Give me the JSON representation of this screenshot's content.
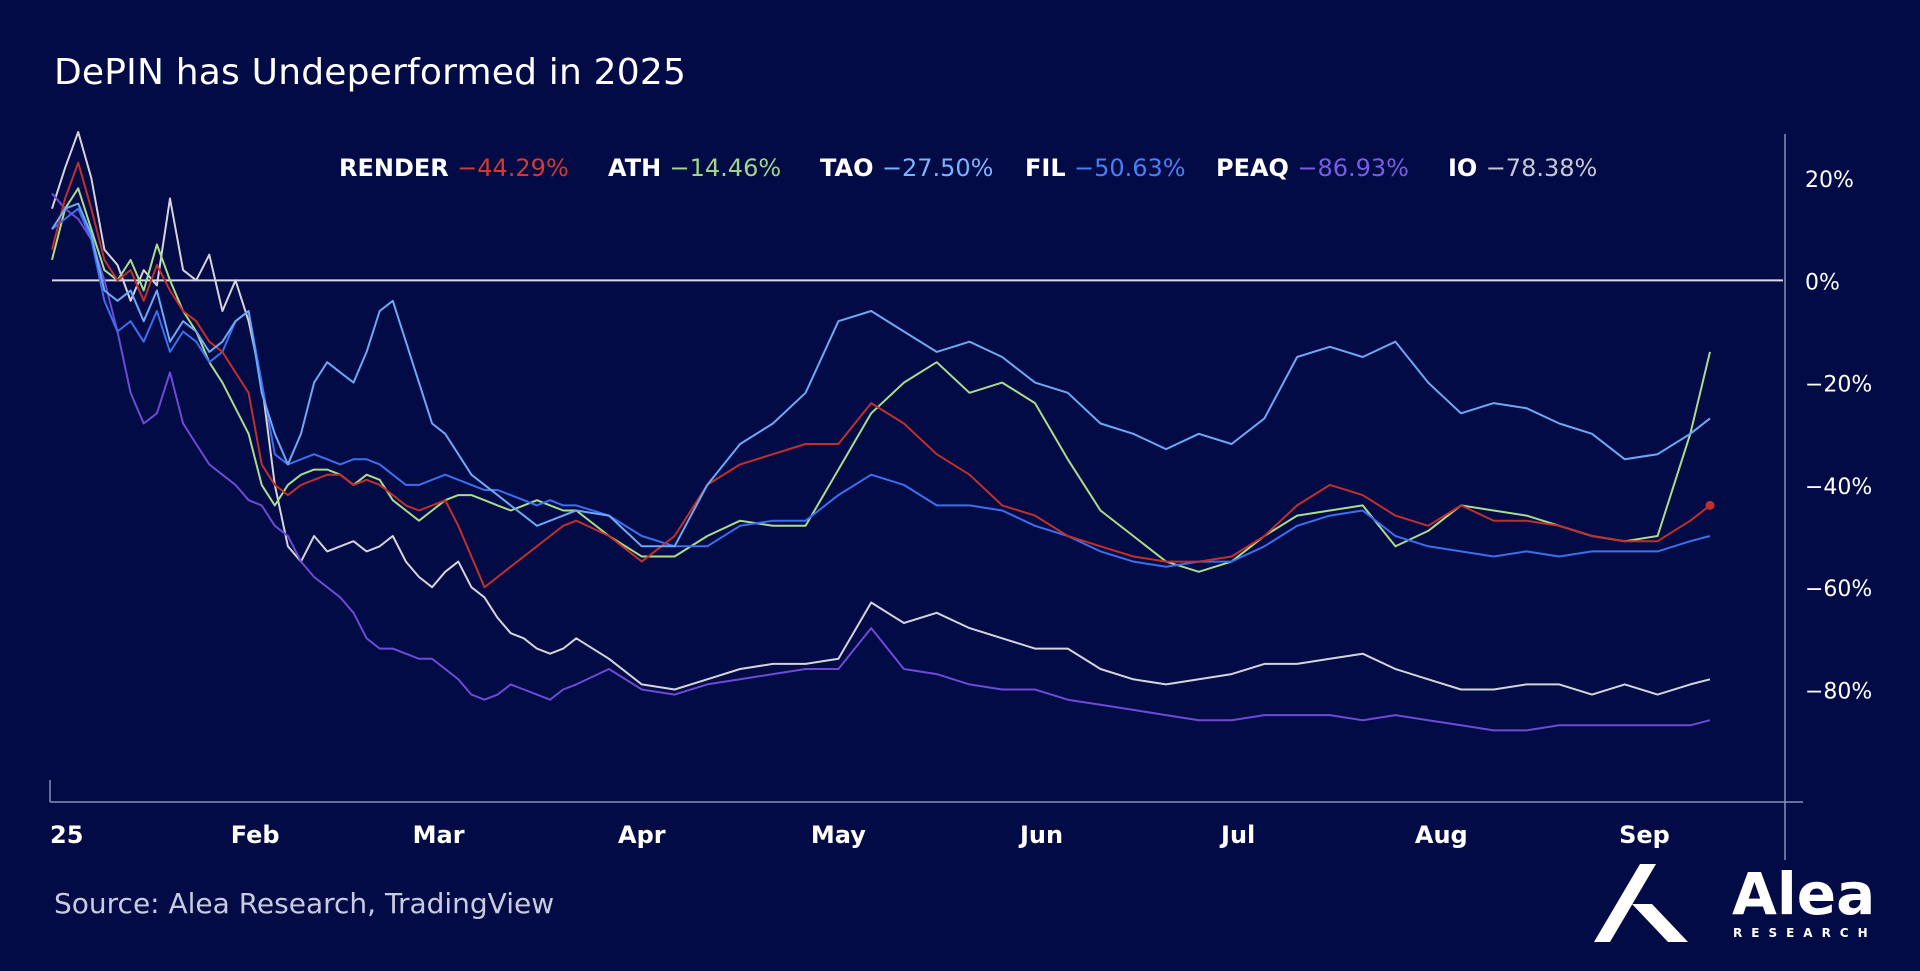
{
  "title": "DePIN has Undeperformed in 2025",
  "source": "Source: Alea Research, TradingView",
  "logo": {
    "name": "Alea",
    "subtitle": "RESEARCH",
    "icon": "alea-logo-icon"
  },
  "colors": {
    "background": "#020b45",
    "axis": "#8a8fb8",
    "zero_line": "#d8dae8",
    "tick_label": "#ffffff"
  },
  "chart_data": {
    "type": "line",
    "title": "DePIN has Undeperformed in 2025",
    "xlabel": "",
    "ylabel": "",
    "y_unit": "%",
    "ylim": [
      -102,
      29
    ],
    "x_domain": [
      0,
      253
    ],
    "y_ticks": [
      20,
      0,
      -20,
      -40,
      -60,
      -80
    ],
    "y_tick_labels": [
      "20%",
      "0%",
      "−20%",
      "−40%",
      "−60%",
      "−80%"
    ],
    "x_ticks": [
      {
        "label": "25",
        "x": 0
      },
      {
        "label": "Feb",
        "x": 31
      },
      {
        "label": "Mar",
        "x": 59
      },
      {
        "label": "Apr",
        "x": 90
      },
      {
        "label": "May",
        "x": 120
      },
      {
        "label": "Jun",
        "x": 151
      },
      {
        "label": "Jul",
        "x": 181
      },
      {
        "label": "Aug",
        "x": 212
      },
      {
        "label": "Sep",
        "x": 243
      }
    ],
    "grid": false,
    "legend_position": "top",
    "series": [
      {
        "name": "IO",
        "color": "#d4d4dc",
        "change": "−78.38%",
        "label_color": "#ffffff",
        "change_color": "#c8c8d4",
        "x": [
          0,
          2,
          4,
          6,
          8,
          10,
          12,
          14,
          16,
          18,
          20,
          22,
          24,
          26,
          28,
          30,
          32,
          34,
          36,
          38,
          40,
          42,
          44,
          46,
          48,
          50,
          52,
          54,
          56,
          58,
          60,
          62,
          64,
          66,
          68,
          70,
          72,
          74,
          76,
          78,
          80,
          85,
          90,
          95,
          100,
          105,
          110,
          115,
          120,
          125,
          130,
          135,
          140,
          145,
          150,
          155,
          160,
          165,
          170,
          175,
          180,
          185,
          190,
          195,
          200,
          205,
          210,
          215,
          220,
          225,
          230,
          235,
          240,
          245,
          250,
          253
        ],
        "y": [
          14,
          22,
          29,
          20,
          6,
          3,
          -4,
          2,
          -1,
          16,
          2,
          0,
          5,
          -6,
          0,
          -8,
          -20,
          -40,
          -52,
          -55,
          -50,
          -53,
          -52,
          -51,
          -53,
          -52,
          -50,
          -55,
          -58,
          -60,
          -57,
          -55,
          -60,
          -62,
          -66,
          -69,
          -70,
          -72,
          -73,
          -72,
          -70,
          -74,
          -79,
          -80,
          -78,
          -76,
          -75,
          -75,
          -74,
          -63,
          -67,
          -65,
          -68,
          -70,
          -72,
          -72,
          -76,
          -78,
          -79,
          -78,
          -77,
          -75,
          -75,
          -74,
          -73,
          -76,
          -78,
          -80,
          -80,
          -79,
          -79,
          -81,
          -79,
          -81,
          -79,
          -78
        ]
      },
      {
        "name": "PEAQ",
        "color": "#6d4ad6",
        "change": "−86.93%",
        "label_color": "#ffffff",
        "change_color": "#7a5ce0",
        "x": [
          0,
          2,
          4,
          6,
          8,
          10,
          12,
          14,
          16,
          18,
          20,
          22,
          24,
          26,
          28,
          30,
          32,
          34,
          36,
          38,
          40,
          42,
          44,
          46,
          48,
          50,
          52,
          54,
          56,
          58,
          60,
          62,
          64,
          66,
          68,
          70,
          72,
          74,
          76,
          78,
          80,
          85,
          90,
          95,
          100,
          105,
          110,
          115,
          120,
          125,
          130,
          135,
          140,
          145,
          150,
          155,
          160,
          165,
          170,
          175,
          180,
          185,
          190,
          195,
          200,
          205,
          210,
          215,
          220,
          225,
          230,
          235,
          240,
          245,
          250,
          253
        ],
        "y": [
          17,
          14,
          12,
          8,
          0,
          -10,
          -22,
          -28,
          -26,
          -18,
          -28,
          -32,
          -36,
          -38,
          -40,
          -43,
          -44,
          -48,
          -50,
          -55,
          -58,
          -60,
          -62,
          -65,
          -70,
          -72,
          -72,
          -73,
          -74,
          -74,
          -76,
          -78,
          -81,
          -82,
          -81,
          -79,
          -80,
          -81,
          -82,
          -80,
          -79,
          -76,
          -80,
          -81,
          -79,
          -78,
          -77,
          -76,
          -76,
          -68,
          -76,
          -77,
          -79,
          -80,
          -80,
          -82,
          -83,
          -84,
          -85,
          -86,
          -86,
          -85,
          -85,
          -85,
          -86,
          -85,
          -86,
          -87,
          -88,
          -88,
          -87,
          -87,
          -87,
          -87,
          -87,
          -86
        ]
      },
      {
        "name": "ATH",
        "color": "#a9dc8c",
        "change": "−14.46%",
        "label_color": "#ffffff",
        "change_color": "#9fd68a",
        "x": [
          0,
          2,
          4,
          6,
          8,
          10,
          12,
          14,
          16,
          18,
          20,
          22,
          24,
          26,
          28,
          30,
          32,
          34,
          36,
          38,
          40,
          42,
          44,
          46,
          48,
          50,
          52,
          54,
          56,
          58,
          60,
          62,
          64,
          66,
          68,
          70,
          72,
          74,
          76,
          78,
          80,
          85,
          90,
          95,
          100,
          105,
          110,
          115,
          120,
          125,
          130,
          135,
          140,
          145,
          150,
          155,
          160,
          165,
          170,
          175,
          180,
          185,
          190,
          195,
          200,
          205,
          210,
          215,
          220,
          225,
          230,
          235,
          240,
          245,
          250,
          253
        ],
        "y": [
          4,
          14,
          18,
          10,
          2,
          0,
          4,
          -2,
          7,
          0,
          -6,
          -10,
          -16,
          -20,
          -25,
          -30,
          -40,
          -44,
          -40,
          -38,
          -37,
          -37,
          -38,
          -40,
          -38,
          -39,
          -43,
          -45,
          -47,
          -45,
          -43,
          -42,
          -42,
          -43,
          -44,
          -45,
          -44,
          -43,
          -44,
          -45,
          -45,
          -50,
          -54,
          -54,
          -50,
          -47,
          -48,
          -48,
          -37,
          -26,
          -20,
          -16,
          -22,
          -20,
          -24,
          -35,
          -45,
          -50,
          -55,
          -57,
          -55,
          -50,
          -46,
          -45,
          -44,
          -52,
          -49,
          -44,
          -45,
          -46,
          -48,
          -50,
          -51,
          -50,
          -30,
          -14
        ]
      },
      {
        "name": "FIL",
        "color": "#3d6ef0",
        "change": "−50.63%",
        "label_color": "#ffffff",
        "change_color": "#4a7ef5",
        "x": [
          0,
          2,
          4,
          6,
          8,
          10,
          12,
          14,
          16,
          18,
          20,
          22,
          24,
          26,
          28,
          30,
          32,
          34,
          36,
          38,
          40,
          42,
          44,
          46,
          48,
          50,
          52,
          54,
          56,
          58,
          60,
          62,
          64,
          66,
          68,
          70,
          72,
          74,
          76,
          78,
          80,
          85,
          90,
          95,
          100,
          105,
          110,
          115,
          120,
          125,
          130,
          135,
          140,
          145,
          150,
          155,
          160,
          165,
          170,
          175,
          180,
          185,
          190,
          195,
          200,
          205,
          210,
          215,
          220,
          225,
          230,
          235,
          240,
          245,
          250,
          253
        ],
        "y": [
          10,
          12,
          14,
          8,
          -4,
          -10,
          -8,
          -12,
          -6,
          -14,
          -10,
          -12,
          -16,
          -14,
          -8,
          -6,
          -20,
          -34,
          -36,
          -35,
          -34,
          -35,
          -36,
          -35,
          -35,
          -36,
          -38,
          -40,
          -40,
          -39,
          -38,
          -39,
          -40,
          -41,
          -41,
          -42,
          -43,
          -44,
          -43,
          -44,
          -44,
          -46,
          -50,
          -52,
          -52,
          -48,
          -47,
          -47,
          -42,
          -38,
          -40,
          -44,
          -44,
          -45,
          -48,
          -50,
          -53,
          -55,
          -56,
          -55,
          -55,
          -52,
          -48,
          -46,
          -45,
          -50,
          -52,
          -53,
          -54,
          -53,
          -54,
          -53,
          -53,
          -53,
          -51,
          -50
        ]
      },
      {
        "name": "RENDER",
        "color": "#c0302a",
        "change": "−44.29%",
        "label_color": "#ffffff",
        "change_color": "#d03a33",
        "x": [
          0,
          2,
          4,
          6,
          8,
          10,
          12,
          14,
          16,
          18,
          20,
          22,
          24,
          26,
          28,
          30,
          32,
          34,
          36,
          38,
          40,
          42,
          44,
          46,
          48,
          50,
          52,
          54,
          56,
          58,
          60,
          62,
          64,
          66,
          68,
          70,
          72,
          74,
          76,
          78,
          80,
          85,
          90,
          95,
          100,
          105,
          110,
          115,
          120,
          125,
          130,
          135,
          140,
          145,
          150,
          155,
          160,
          165,
          170,
          175,
          180,
          185,
          190,
          195,
          200,
          205,
          210,
          215,
          220,
          225,
          230,
          235,
          240,
          245,
          250,
          253
        ],
        "y": [
          6,
          16,
          23,
          14,
          4,
          0,
          2,
          -4,
          3,
          -2,
          -6,
          -8,
          -12,
          -14,
          -18,
          -22,
          -36,
          -40,
          -42,
          -40,
          -39,
          -38,
          -38,
          -40,
          -39,
          -40,
          -42,
          -44,
          -45,
          -44,
          -43,
          -48,
          -54,
          -60,
          -58,
          -56,
          -54,
          -52,
          -50,
          -48,
          -47,
          -50,
          -55,
          -50,
          -40,
          -36,
          -34,
          -32,
          -32,
          -24,
          -28,
          -34,
          -38,
          -44,
          -46,
          -50,
          -52,
          -54,
          -55,
          -55,
          -54,
          -50,
          -44,
          -40,
          -42,
          -46,
          -48,
          -44,
          -47,
          -47,
          -48,
          -50,
          -51,
          -51,
          -47,
          -44
        ]
      },
      {
        "name": "TAO",
        "color": "#6ea8f5",
        "change": "−27.50%",
        "label_color": "#ffffff",
        "change_color": "#78b4ff",
        "x": [
          0,
          2,
          4,
          6,
          8,
          10,
          12,
          14,
          16,
          18,
          20,
          22,
          24,
          26,
          28,
          30,
          32,
          34,
          36,
          38,
          40,
          42,
          44,
          46,
          48,
          50,
          52,
          54,
          56,
          58,
          60,
          62,
          64,
          66,
          68,
          70,
          72,
          74,
          76,
          78,
          80,
          85,
          90,
          95,
          100,
          105,
          110,
          115,
          120,
          125,
          130,
          135,
          140,
          145,
          150,
          155,
          160,
          165,
          170,
          175,
          180,
          185,
          190,
          195,
          200,
          205,
          210,
          215,
          220,
          225,
          230,
          235,
          240,
          245,
          250,
          253
        ],
        "y": [
          10,
          14,
          15,
          9,
          -2,
          -4,
          -2,
          -8,
          -2,
          -12,
          -8,
          -10,
          -14,
          -12,
          -8,
          -6,
          -22,
          -30,
          -36,
          -30,
          -20,
          -16,
          -18,
          -20,
          -14,
          -6,
          -4,
          -12,
          -20,
          -28,
          -30,
          -34,
          -38,
          -40,
          -42,
          -44,
          -46,
          -48,
          -47,
          -46,
          -45,
          -46,
          -52,
          -52,
          -40,
          -32,
          -28,
          -22,
          -8,
          -6,
          -10,
          -14,
          -12,
          -15,
          -20,
          -22,
          -28,
          -30,
          -33,
          -30,
          -32,
          -27,
          -15,
          -13,
          -15,
          -12,
          -20,
          -26,
          -24,
          -25,
          -28,
          -30,
          -35,
          -34,
          -30,
          -27
        ]
      }
    ]
  }
}
